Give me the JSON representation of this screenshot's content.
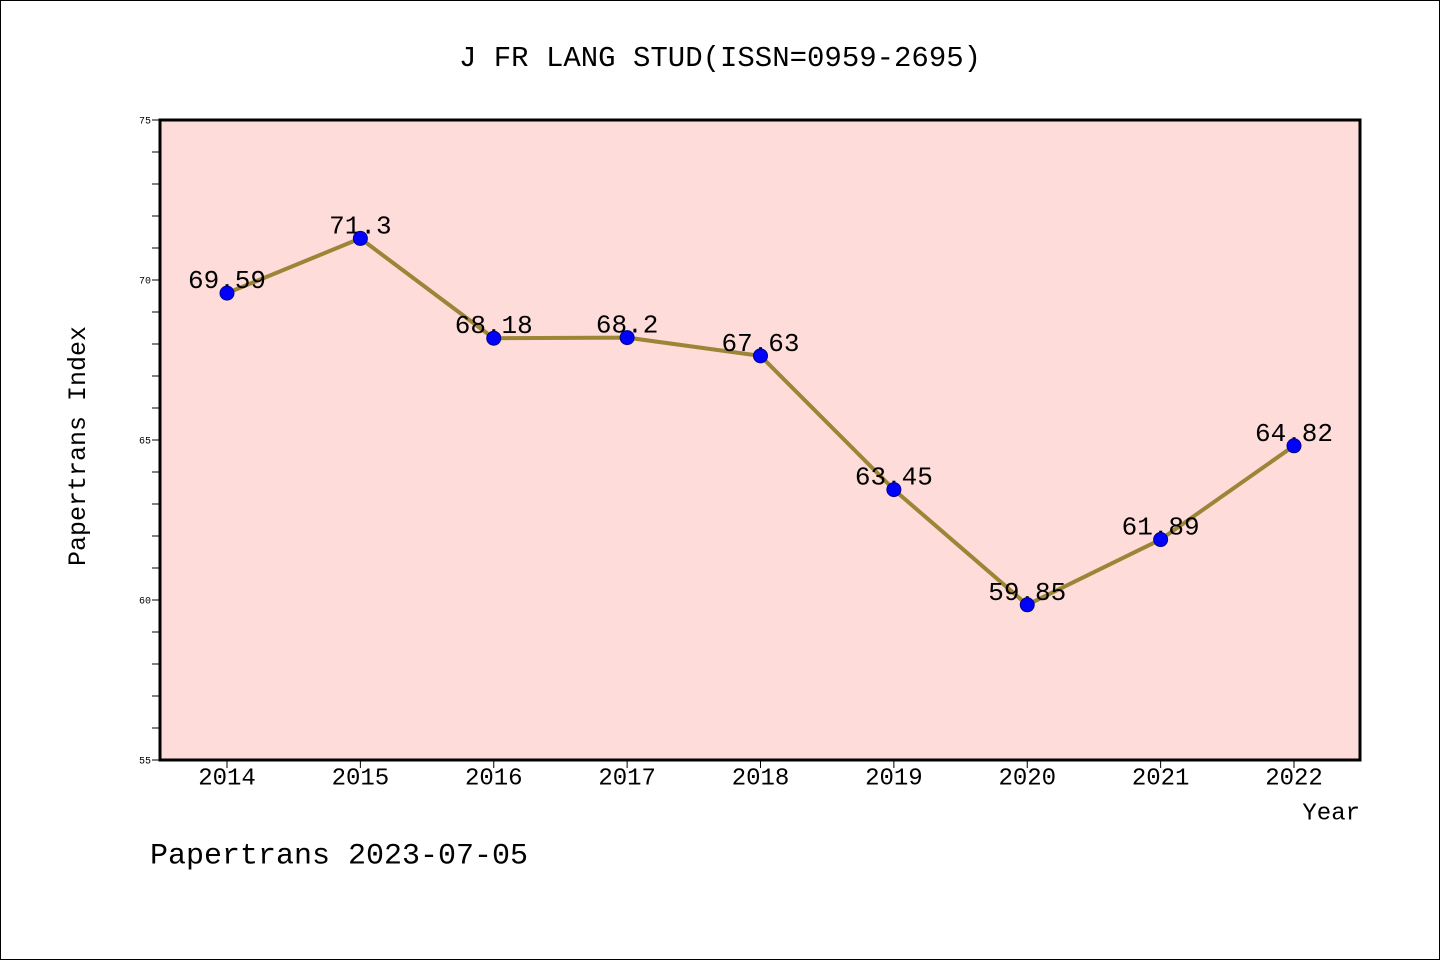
{
  "footer": "Papertrans 2023-07-05",
  "colors": {
    "page_background": "#FFFFFF",
    "plot_background": "#FDDCDA",
    "line": "#9C8536",
    "marker": "#0000FF",
    "marker_edge": "#00008B",
    "axis": "#000000"
  },
  "chart_data": {
    "type": "line",
    "title": "J FR LANG STUD(ISSN=0959-2695)",
    "xlabel": "Year",
    "ylabel": "Papertrans Index",
    "categories": [
      "2014",
      "2015",
      "2016",
      "2017",
      "2018",
      "2019",
      "2020",
      "2021",
      "2022"
    ],
    "values": [
      69.59,
      71.3,
      68.18,
      68.2,
      67.63,
      63.45,
      59.85,
      61.89,
      64.82
    ],
    "ylim": [
      55,
      75
    ],
    "yticks": [
      55,
      60,
      65,
      70,
      75
    ],
    "y_minor_step": 1,
    "data_labels": true,
    "markers": "circle",
    "grid": false,
    "legend": "none"
  }
}
